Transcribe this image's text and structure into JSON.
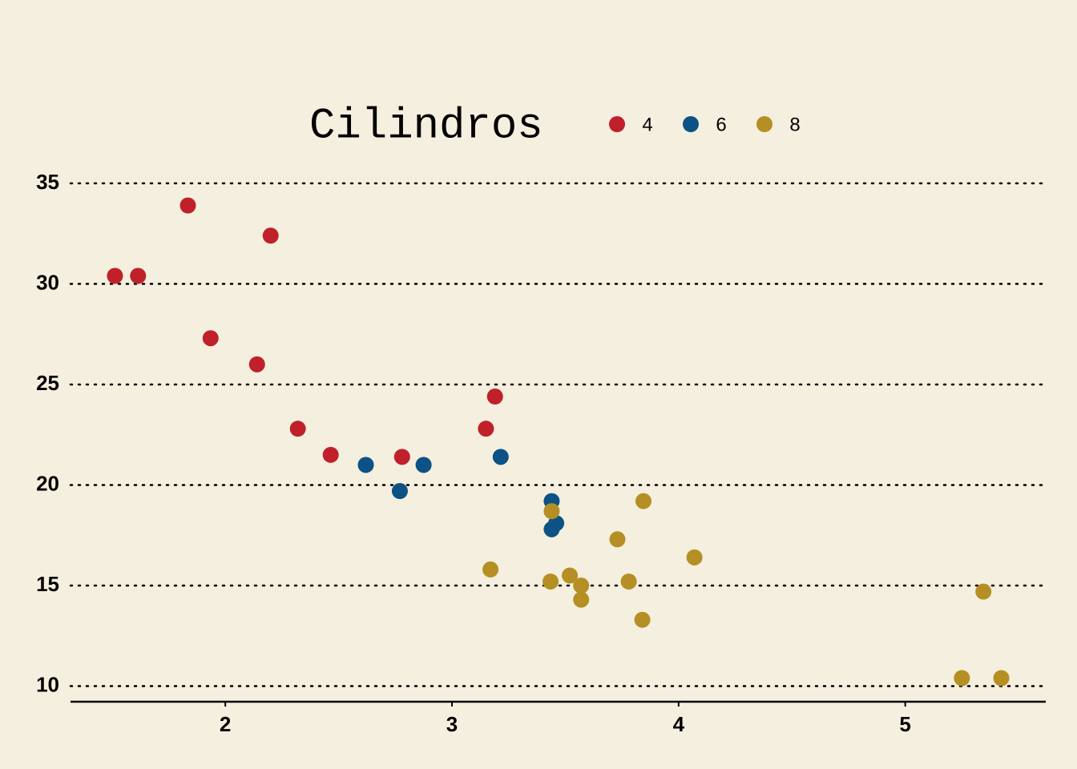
{
  "chart_data": {
    "type": "scatter",
    "legend_title": "Cilindros",
    "legend_position": "top",
    "series": [
      {
        "name": "4",
        "color": "#c0202a",
        "x": [
          2.32,
          3.19,
          3.15,
          2.2,
          1.615,
          1.835,
          2.465,
          1.935,
          2.14,
          1.513,
          2.78
        ],
        "values": [
          22.8,
          24.4,
          22.8,
          32.4,
          30.4,
          33.9,
          21.5,
          27.3,
          26.0,
          30.4,
          21.4
        ]
      },
      {
        "name": "6",
        "color": "#0c5284",
        "x": [
          2.62,
          2.875,
          3.215,
          3.46,
          3.44,
          3.44,
          2.77
        ],
        "values": [
          21.0,
          21.0,
          21.4,
          18.1,
          19.2,
          17.8,
          19.7
        ]
      },
      {
        "name": "8",
        "color": "#b58f24",
        "x": [
          3.44,
          3.57,
          4.07,
          3.73,
          3.78,
          5.25,
          5.424,
          5.345,
          3.52,
          3.435,
          3.84,
          3.845,
          3.17,
          3.57
        ],
        "values": [
          18.7,
          14.3,
          16.4,
          17.3,
          15.2,
          10.4,
          10.4,
          14.7,
          15.5,
          15.2,
          13.3,
          19.2,
          15.8,
          15.0
        ]
      }
    ],
    "xlim": [
      1.317,
      5.62
    ],
    "ylim": [
      9.225,
      35.075
    ],
    "xticks": [
      2,
      3,
      4,
      5
    ],
    "yticks": [
      10,
      15,
      20,
      25,
      30,
      35
    ],
    "grid": true
  }
}
